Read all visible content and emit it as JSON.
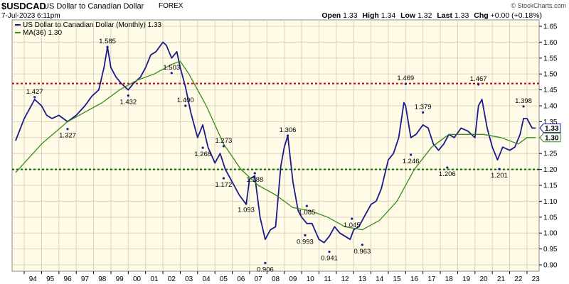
{
  "header": {
    "symbol": "$USDCAD",
    "description": "US Dollar to Canadian Dollar",
    "exchange": "FOREX",
    "date": "7-Jul-2023 6:11pm",
    "open_label": "Open",
    "open": "1.33",
    "high_label": "High",
    "high": "1.34",
    "low_label": "Low",
    "low": "1.32",
    "last_label": "Last",
    "last": "1.33",
    "chg_label": "Chg",
    "chg": "+0.00 (+0.18%)",
    "watermark": "© StockCharts.com"
  },
  "chart_data": {
    "type": "line",
    "legend_position": "top-left",
    "ylim": [
      0.88,
      1.67
    ],
    "yticks": [
      "0.90",
      "0.95",
      "1.00",
      "1.05",
      "1.10",
      "1.15",
      "1.20",
      "1.25",
      "1.30",
      "1.35",
      "1.40",
      "1.45",
      "1.50",
      "1.55",
      "1.60",
      "1.65"
    ],
    "xticks": [
      "94",
      "95",
      "96",
      "97",
      "98",
      "99",
      "00",
      "01",
      "02",
      "03",
      "04",
      "05",
      "06",
      "07",
      "08",
      "09",
      "10",
      "11",
      "12",
      "13",
      "14",
      "15",
      "16",
      "17",
      "18",
      "19",
      "20",
      "21",
      "22",
      "23"
    ],
    "series": [
      {
        "name": "US Dollar to Canadian Dollar (Monthly) 1.33",
        "color": "#1a1a8c",
        "x": [
          1993.5,
          1994.0,
          1994.3,
          1994.6,
          1995.0,
          1995.3,
          1995.6,
          1996.0,
          1996.5,
          1997.0,
          1997.5,
          1997.9,
          1998.3,
          1998.6,
          1998.8,
          1999.0,
          1999.3,
          1999.6,
          2000.0,
          2000.3,
          2000.7,
          2001.0,
          2001.3,
          2001.6,
          2002.0,
          2002.2,
          2002.5,
          2002.8,
          2003.0,
          2003.3,
          2003.6,
          2004.0,
          2004.3,
          2004.6,
          2005.0,
          2005.3,
          2005.6,
          2006.0,
          2006.4,
          2006.8,
          2007.0,
          2007.3,
          2007.6,
          2007.9,
          2008.2,
          2008.5,
          2008.8,
          2009.0,
          2009.2,
          2009.5,
          2009.8,
          2010.0,
          2010.3,
          2010.6,
          2011.0,
          2011.3,
          2011.6,
          2011.9,
          2012.2,
          2012.5,
          2012.8,
          2013.0,
          2013.3,
          2013.6,
          2014.0,
          2014.3,
          2014.6,
          2015.0,
          2015.3,
          2015.6,
          2015.9,
          2016.0,
          2016.3,
          2016.6,
          2017.0,
          2017.3,
          2017.6,
          2017.9,
          2018.2,
          2018.5,
          2018.8,
          2019.2,
          2019.6,
          2020.0,
          2020.2,
          2020.4,
          2020.7,
          2021.0,
          2021.3,
          2021.6,
          2022.0,
          2022.3,
          2022.6,
          2022.8,
          2023.0,
          2023.3,
          2023.5
        ],
        "y": [
          1.29,
          1.36,
          1.39,
          1.42,
          1.4,
          1.37,
          1.36,
          1.37,
          1.35,
          1.37,
          1.4,
          1.43,
          1.45,
          1.52,
          1.585,
          1.52,
          1.49,
          1.47,
          1.45,
          1.47,
          1.49,
          1.52,
          1.56,
          1.57,
          1.6,
          1.59,
          1.55,
          1.57,
          1.52,
          1.46,
          1.38,
          1.3,
          1.34,
          1.27,
          1.22,
          1.25,
          1.2,
          1.16,
          1.12,
          1.09,
          1.17,
          1.18,
          1.05,
          0.98,
          1.01,
          1.02,
          1.21,
          1.27,
          1.306,
          1.16,
          1.07,
          1.05,
          1.03,
          1.03,
          0.98,
          0.97,
          0.99,
          1.02,
          1.0,
          0.99,
          0.98,
          1.01,
          1.02,
          1.05,
          1.09,
          1.1,
          1.14,
          1.23,
          1.25,
          1.3,
          1.41,
          1.4,
          1.3,
          1.31,
          1.34,
          1.33,
          1.28,
          1.26,
          1.28,
          1.31,
          1.3,
          1.33,
          1.32,
          1.3,
          1.4,
          1.42,
          1.33,
          1.27,
          1.23,
          1.27,
          1.26,
          1.27,
          1.31,
          1.36,
          1.36,
          1.33,
          1.33
        ]
      },
      {
        "name": "MA(36) 1.30",
        "color": "#3a8a1e",
        "x": [
          1993.5,
          1995.0,
          1996.5,
          1997.5,
          1998.5,
          1999.5,
          2000.5,
          2001.5,
          2002.5,
          2003.0,
          2003.5,
          2004.5,
          2005.5,
          2006.5,
          2007.5,
          2008.5,
          2009.5,
          2010.5,
          2011.5,
          2012.5,
          2013.5,
          2014.5,
          2015.5,
          2016.5,
          2017.5,
          2018.5,
          2019.5,
          2020.5,
          2021.5,
          2022.5,
          2023.0,
          2023.5
        ],
        "y": [
          1.19,
          1.28,
          1.35,
          1.38,
          1.41,
          1.45,
          1.48,
          1.5,
          1.53,
          1.54,
          1.5,
          1.4,
          1.28,
          1.2,
          1.15,
          1.12,
          1.08,
          1.07,
          1.05,
          1.02,
          1.01,
          1.04,
          1.1,
          1.2,
          1.27,
          1.31,
          1.31,
          1.31,
          1.3,
          1.28,
          1.3,
          1.3
        ]
      }
    ],
    "reference_lines": [
      {
        "y": 1.47,
        "color": "#cc0000"
      },
      {
        "y": 1.2,
        "color": "#006600"
      }
    ],
    "annotations": [
      {
        "label": "1.427",
        "x": 1994.6,
        "y": 1.427
      },
      {
        "label": "1.327",
        "x": 1996.5,
        "y": 1.327
      },
      {
        "label": "1.585",
        "x": 1998.8,
        "y": 1.585
      },
      {
        "label": "1.432",
        "x": 2000.0,
        "y": 1.432
      },
      {
        "label": "1.503",
        "x": 2002.5,
        "y": 1.503
      },
      {
        "label": "1.400",
        "x": 2003.3,
        "y": 1.4
      },
      {
        "label": "1.268",
        "x": 2004.3,
        "y": 1.268
      },
      {
        "label": "1.273",
        "x": 2005.5,
        "y": 1.273
      },
      {
        "label": "1.172",
        "x": 2005.5,
        "y": 1.172
      },
      {
        "label": "1.188",
        "x": 2007.3,
        "y": 1.188
      },
      {
        "label": "1.093",
        "x": 2006.8,
        "y": 1.093
      },
      {
        "label": "0.906",
        "x": 2007.9,
        "y": 0.906
      },
      {
        "label": "1.306",
        "x": 2009.2,
        "y": 1.306
      },
      {
        "label": "1.085",
        "x": 2010.3,
        "y": 1.085
      },
      {
        "label": "0.993",
        "x": 2010.2,
        "y": 0.993
      },
      {
        "label": "0.941",
        "x": 2011.6,
        "y": 0.941
      },
      {
        "label": "1.045",
        "x": 2012.9,
        "y": 1.045
      },
      {
        "label": "0.963",
        "x": 2013.5,
        "y": 0.963
      },
      {
        "label": "1.469",
        "x": 2016.0,
        "y": 1.469
      },
      {
        "label": "1.246",
        "x": 2016.3,
        "y": 1.246
      },
      {
        "label": "1.379",
        "x": 2017.0,
        "y": 1.379
      },
      {
        "label": "1.206",
        "x": 2018.4,
        "y": 1.206
      },
      {
        "label": "1.467",
        "x": 2020.2,
        "y": 1.467
      },
      {
        "label": "1.201",
        "x": 2021.4,
        "y": 1.201
      },
      {
        "label": "1.398",
        "x": 2022.8,
        "y": 1.398
      }
    ],
    "last_value_labels": [
      {
        "label": "1.33",
        "y": 1.33,
        "color": "#1a1a8c"
      },
      {
        "label": "1.30",
        "y": 1.3,
        "color": "#3a8a1e"
      }
    ]
  }
}
